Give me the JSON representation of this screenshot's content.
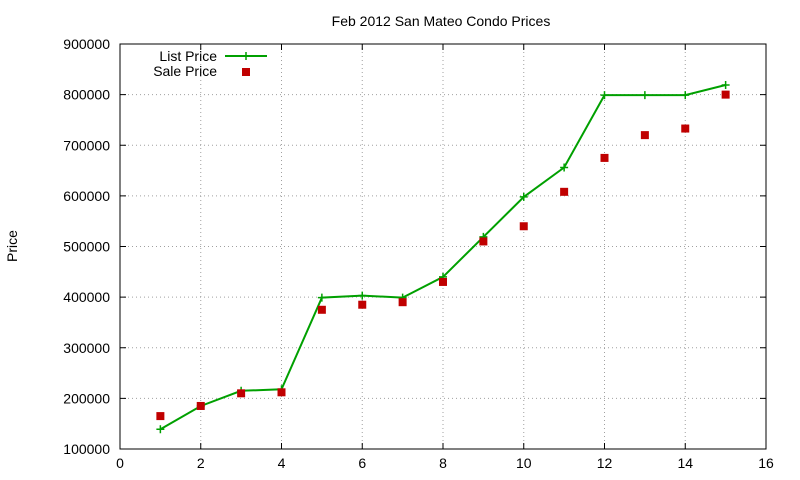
{
  "chart_data": {
    "type": "line",
    "title": "Feb 2012 San Mateo Condo Prices",
    "xlabel": "",
    "ylabel": "Price",
    "xlim": [
      0,
      16
    ],
    "ylim": [
      100000,
      900000
    ],
    "x_ticks": [
      "0",
      "2",
      "4",
      "6",
      "8",
      "10",
      "12",
      "14",
      "16"
    ],
    "y_ticks": [
      "100000",
      "200000",
      "300000",
      "400000",
      "500000",
      "600000",
      "700000",
      "800000",
      "900000"
    ],
    "grid": true,
    "legend_position": "top-left",
    "series": [
      {
        "name": "List Price",
        "style": "line-with-plus-markers",
        "color": "#00a000",
        "x": [
          1,
          2,
          3,
          4,
          5,
          6,
          7,
          8,
          9,
          10,
          11,
          12,
          13,
          14,
          15
        ],
        "y": [
          139000,
          185000,
          215000,
          218000,
          399000,
          403000,
          399000,
          440000,
          519000,
          598000,
          656000,
          799000,
          799000,
          799000,
          819000
        ]
      },
      {
        "name": "Sale Price",
        "style": "square-markers",
        "color": "#c00000",
        "x": [
          1,
          2,
          3,
          4,
          5,
          6,
          7,
          8,
          9,
          10,
          11,
          12,
          13,
          14,
          15
        ],
        "y": [
          165000,
          185000,
          210000,
          212000,
          375000,
          385000,
          390000,
          430000,
          510000,
          540000,
          608000,
          675000,
          720000,
          733000,
          800000
        ]
      }
    ]
  }
}
